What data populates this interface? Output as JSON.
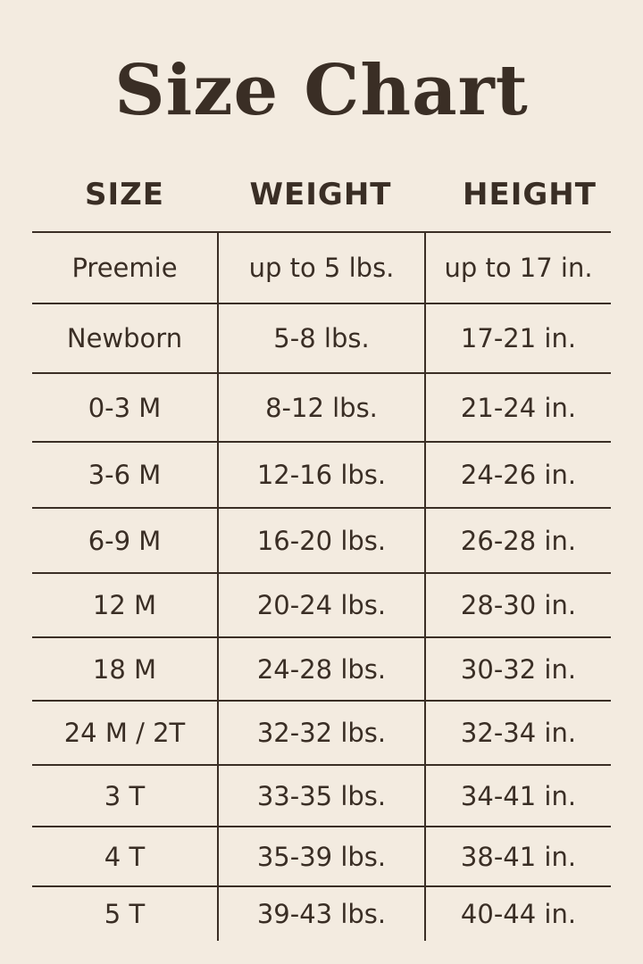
{
  "title": "Size Chart",
  "colors": {
    "background": "#f3ebe0",
    "text": "#3a2e25"
  },
  "headers": [
    "SIZE",
    "WEIGHT",
    "HEIGHT"
  ],
  "rows": [
    {
      "size": "Preemie",
      "weight": "up to 5 lbs.",
      "height": "up to 17 in."
    },
    {
      "size": "Newborn",
      "weight": "5-8 lbs.",
      "height": "17-21 in."
    },
    {
      "size": "0-3 M",
      "weight": "8-12 lbs.",
      "height": "21-24 in."
    },
    {
      "size": "3-6 M",
      "weight": "12-16 lbs.",
      "height": "24-26 in."
    },
    {
      "size": "6-9 M",
      "weight": "16-20 lbs.",
      "height": "26-28 in."
    },
    {
      "size": "12 M",
      "weight": "20-24 lbs.",
      "height": "28-30 in."
    },
    {
      "size": "18 M",
      "weight": "24-28 lbs.",
      "height": "30-32 in."
    },
    {
      "size": "24 M / 2T",
      "weight": "32-32 lbs.",
      "height": "32-34 in."
    },
    {
      "size": "3 T",
      "weight": "33-35 lbs.",
      "height": "34-41 in."
    },
    {
      "size": "4 T",
      "weight": "35-39 lbs.",
      "height": "38-41 in."
    },
    {
      "size": "5 T",
      "weight": "39-43 lbs.",
      "height": "40-44 in."
    }
  ]
}
